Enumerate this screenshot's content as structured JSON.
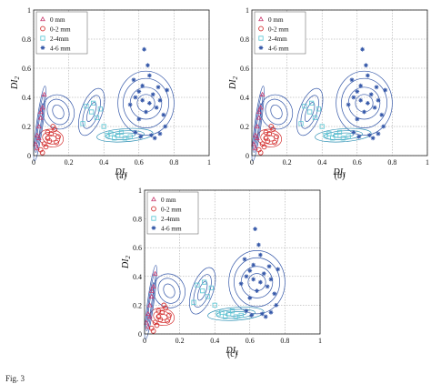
{
  "caption": "Fig. 3",
  "chart_data": [
    {
      "type": "scatter",
      "panel_label": "(a)",
      "xlabel": "DI1",
      "ylabel": "DI2",
      "xlim": [
        0,
        1
      ],
      "ylim": [
        0,
        1
      ],
      "xticks": [
        "0",
        "0.2",
        "0.4",
        "0.6",
        "0.8",
        "1"
      ],
      "yticks": [
        "0",
        "0.2",
        "0.4",
        "0.6",
        "0.8",
        "1"
      ],
      "grid": true,
      "legend_position": "top-left",
      "series": [
        {
          "name": "0 mm",
          "marker": "triangle",
          "color": "#c83a6e",
          "x": [
            0.01,
            0.02,
            0.03,
            0.04,
            0.05,
            0.06,
            0.02,
            0.03,
            0.04
          ],
          "y": [
            0.08,
            0.14,
            0.2,
            0.26,
            0.33,
            0.42,
            0.05,
            0.12,
            0.3
          ]
        },
        {
          "name": "0-2 mm",
          "marker": "circle",
          "color": "#d43030",
          "x": [
            0.04,
            0.06,
            0.08,
            0.1,
            0.12,
            0.14,
            0.07,
            0.09,
            0.11,
            0.05,
            0.13,
            0.08
          ],
          "y": [
            0.04,
            0.08,
            0.12,
            0.15,
            0.18,
            0.13,
            0.06,
            0.1,
            0.2,
            0.02,
            0.09,
            0.16
          ]
        },
        {
          "name": "2-4mm",
          "marker": "square",
          "color": "#5bc6d4",
          "x": [
            0.3,
            0.33,
            0.36,
            0.4,
            0.44,
            0.48,
            0.52,
            0.34,
            0.38,
            0.42,
            0.5,
            0.28,
            0.46,
            0.55
          ],
          "y": [
            0.34,
            0.3,
            0.26,
            0.2,
            0.15,
            0.14,
            0.12,
            0.36,
            0.32,
            0.14,
            0.16,
            0.22,
            0.12,
            0.13
          ]
        },
        {
          "name": "4-6 mm",
          "marker": "star",
          "color": "#3457a8",
          "x": [
            0.55,
            0.58,
            0.6,
            0.62,
            0.64,
            0.66,
            0.68,
            0.7,
            0.72,
            0.74,
            0.76,
            0.63,
            0.65,
            0.58,
            0.61,
            0.67,
            0.69,
            0.72,
            0.6,
            0.57,
            0.75,
            0.66,
            0.62,
            0.71
          ],
          "y": [
            0.35,
            0.4,
            0.44,
            0.48,
            0.3,
            0.36,
            0.42,
            0.33,
            0.38,
            0.28,
            0.45,
            0.73,
            0.62,
            0.16,
            0.13,
            0.14,
            0.12,
            0.15,
            0.25,
            0.52,
            0.2,
            0.55,
            0.38,
            0.47
          ]
        }
      ]
    },
    {
      "type": "scatter",
      "panel_label": "(b)",
      "xlabel": "DI1",
      "ylabel": "DI2",
      "xlim": [
        0,
        1
      ],
      "ylim": [
        0,
        1
      ],
      "xticks": [
        "0",
        "0.2",
        "0.4",
        "0.6",
        "0.8",
        "1"
      ],
      "yticks": [
        "0",
        "0.2",
        "0.4",
        "0.6",
        "0.8",
        "1"
      ],
      "grid": true,
      "legend_position": "top-left",
      "series": [
        {
          "name": "0 mm",
          "marker": "triangle",
          "color": "#c83a6e",
          "x": [
            0.01,
            0.02,
            0.03,
            0.04,
            0.05,
            0.06,
            0.02,
            0.03,
            0.04
          ],
          "y": [
            0.08,
            0.14,
            0.2,
            0.26,
            0.33,
            0.42,
            0.05,
            0.12,
            0.3
          ]
        },
        {
          "name": "0-2 mm",
          "marker": "circle",
          "color": "#d43030",
          "x": [
            0.04,
            0.06,
            0.08,
            0.1,
            0.12,
            0.14,
            0.07,
            0.09,
            0.11,
            0.05,
            0.13,
            0.08
          ],
          "y": [
            0.04,
            0.08,
            0.12,
            0.15,
            0.18,
            0.13,
            0.06,
            0.1,
            0.2,
            0.02,
            0.09,
            0.16
          ]
        },
        {
          "name": "2-4mm",
          "marker": "square",
          "color": "#5bc6d4",
          "x": [
            0.3,
            0.33,
            0.36,
            0.4,
            0.44,
            0.48,
            0.52,
            0.34,
            0.38,
            0.42,
            0.5,
            0.28,
            0.46,
            0.55
          ],
          "y": [
            0.34,
            0.3,
            0.26,
            0.2,
            0.15,
            0.14,
            0.12,
            0.36,
            0.32,
            0.14,
            0.16,
            0.22,
            0.12,
            0.13
          ]
        },
        {
          "name": "4-6 mm",
          "marker": "star",
          "color": "#3457a8",
          "x": [
            0.55,
            0.58,
            0.6,
            0.62,
            0.64,
            0.66,
            0.68,
            0.7,
            0.72,
            0.74,
            0.76,
            0.63,
            0.65,
            0.58,
            0.61,
            0.67,
            0.69,
            0.72,
            0.6,
            0.57,
            0.75,
            0.66,
            0.62,
            0.71
          ],
          "y": [
            0.35,
            0.4,
            0.44,
            0.48,
            0.3,
            0.36,
            0.42,
            0.33,
            0.38,
            0.28,
            0.45,
            0.73,
            0.62,
            0.16,
            0.13,
            0.14,
            0.12,
            0.15,
            0.25,
            0.52,
            0.2,
            0.55,
            0.38,
            0.47
          ]
        }
      ]
    },
    {
      "type": "scatter",
      "panel_label": "(c)",
      "xlabel": "DI1",
      "ylabel": "DI2",
      "xlim": [
        0,
        1
      ],
      "ylim": [
        0,
        1
      ],
      "xticks": [
        "0",
        "0.2",
        "0.4",
        "0.6",
        "0.8",
        "1"
      ],
      "yticks": [
        "0",
        "0.2",
        "0.4",
        "0.6",
        "0.8",
        "1"
      ],
      "grid": true,
      "legend_position": "top-left",
      "series": [
        {
          "name": "0 mm",
          "marker": "triangle",
          "color": "#c83a6e",
          "x": [
            0.01,
            0.02,
            0.03,
            0.04,
            0.05,
            0.06,
            0.02,
            0.03,
            0.04
          ],
          "y": [
            0.08,
            0.14,
            0.2,
            0.26,
            0.33,
            0.42,
            0.05,
            0.12,
            0.3
          ]
        },
        {
          "name": "0-2 mm",
          "marker": "circle",
          "color": "#d43030",
          "x": [
            0.04,
            0.06,
            0.08,
            0.1,
            0.12,
            0.14,
            0.07,
            0.09,
            0.11,
            0.05,
            0.13,
            0.08
          ],
          "y": [
            0.04,
            0.08,
            0.12,
            0.15,
            0.18,
            0.13,
            0.06,
            0.1,
            0.2,
            0.02,
            0.09,
            0.16
          ]
        },
        {
          "name": "2-4mm",
          "marker": "square",
          "color": "#5bc6d4",
          "x": [
            0.3,
            0.33,
            0.36,
            0.4,
            0.44,
            0.48,
            0.52,
            0.34,
            0.38,
            0.42,
            0.5,
            0.28,
            0.46,
            0.55
          ],
          "y": [
            0.34,
            0.3,
            0.26,
            0.2,
            0.15,
            0.14,
            0.12,
            0.36,
            0.32,
            0.14,
            0.16,
            0.22,
            0.12,
            0.13
          ]
        },
        {
          "name": "4-6 mm",
          "marker": "star",
          "color": "#3457a8",
          "x": [
            0.55,
            0.58,
            0.6,
            0.62,
            0.64,
            0.66,
            0.68,
            0.7,
            0.72,
            0.74,
            0.76,
            0.63,
            0.65,
            0.58,
            0.61,
            0.67,
            0.69,
            0.72,
            0.6,
            0.57,
            0.75,
            0.66,
            0.62,
            0.71
          ],
          "y": [
            0.35,
            0.4,
            0.44,
            0.48,
            0.3,
            0.36,
            0.42,
            0.33,
            0.38,
            0.28,
            0.45,
            0.73,
            0.62,
            0.16,
            0.13,
            0.14,
            0.12,
            0.15,
            0.25,
            0.52,
            0.2,
            0.55,
            0.38,
            0.47
          ]
        }
      ]
    }
  ]
}
